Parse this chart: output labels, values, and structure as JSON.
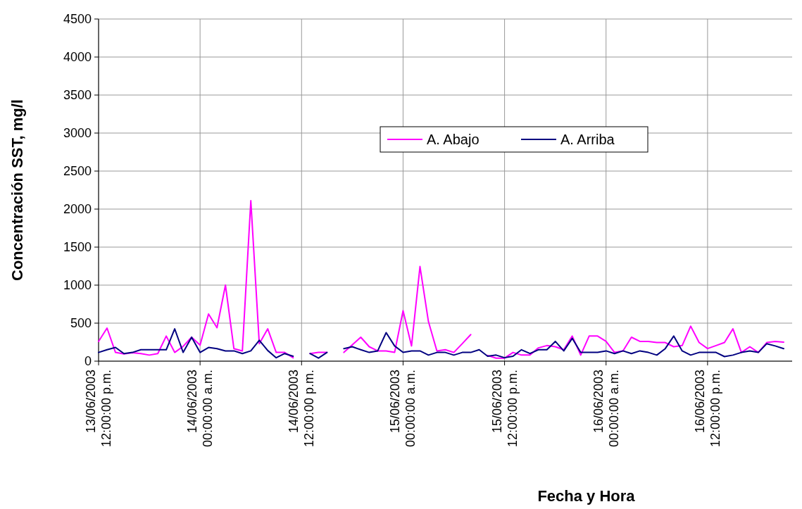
{
  "chart_data": {
    "type": "line",
    "xlabel": "Fecha y Hora",
    "ylabel": "Concentración SST, mg/l",
    "x": [
      "2003-06-13T12:00",
      "2003-06-13T13:00",
      "2003-06-13T14:00",
      "2003-06-13T15:00",
      "2003-06-13T16:00",
      "2003-06-13T17:00",
      "2003-06-13T18:00",
      "2003-06-13T19:00",
      "2003-06-13T20:00",
      "2003-06-13T21:00",
      "2003-06-13T22:00",
      "2003-06-13T23:00",
      "2003-06-14T00:00",
      "2003-06-14T01:00",
      "2003-06-14T02:00",
      "2003-06-14T03:00",
      "2003-06-14T04:00",
      "2003-06-14T05:00",
      "2003-06-14T06:00",
      "2003-06-14T07:00",
      "2003-06-14T08:00",
      "2003-06-14T09:00",
      "2003-06-14T10:00",
      "2003-06-14T11:00",
      "2003-06-14T12:00",
      "2003-06-14T13:00",
      "2003-06-14T14:00",
      "2003-06-14T15:00",
      "2003-06-14T16:00",
      "2003-06-14T17:00",
      "2003-06-14T18:00",
      "2003-06-14T19:00",
      "2003-06-14T20:00",
      "2003-06-14T21:00",
      "2003-06-14T22:00",
      "2003-06-14T23:00",
      "2003-06-15T00:00",
      "2003-06-15T01:00",
      "2003-06-15T02:00",
      "2003-06-15T03:00",
      "2003-06-15T04:00",
      "2003-06-15T05:00",
      "2003-06-15T06:00",
      "2003-06-15T07:00",
      "2003-06-15T08:00",
      "2003-06-15T09:00",
      "2003-06-15T10:00",
      "2003-06-15T11:00",
      "2003-06-15T12:00",
      "2003-06-15T13:00",
      "2003-06-15T14:00",
      "2003-06-15T15:00",
      "2003-06-15T16:00",
      "2003-06-15T17:00",
      "2003-06-15T18:00",
      "2003-06-15T19:00",
      "2003-06-15T20:00",
      "2003-06-15T21:00",
      "2003-06-15T22:00",
      "2003-06-15T23:00",
      "2003-06-16T00:00",
      "2003-06-16T01:00",
      "2003-06-16T02:00",
      "2003-06-16T03:00",
      "2003-06-16T04:00",
      "2003-06-16T05:00",
      "2003-06-16T06:00",
      "2003-06-16T07:00",
      "2003-06-16T08:00",
      "2003-06-16T09:00",
      "2003-06-16T10:00",
      "2003-06-16T11:00",
      "2003-06-16T12:00",
      "2003-06-16T13:00",
      "2003-06-16T14:00",
      "2003-06-16T15:00",
      "2003-06-16T16:00",
      "2003-06-16T17:00",
      "2003-06-16T18:00",
      "2003-06-16T19:00",
      "2003-06-16T20:00",
      "2003-06-16T21:00"
    ],
    "series": [
      {
        "name": "A. Abajo",
        "color": "#ff00ff",
        "values": [
          260,
          435,
          115,
          95,
          110,
          100,
          80,
          100,
          330,
          115,
          195,
          315,
          210,
          620,
          440,
          1000,
          165,
          135,
          2110,
          230,
          425,
          115,
          115,
          45,
          null,
          100,
          115,
          115,
          null,
          115,
          215,
          315,
          190,
          135,
          135,
          115,
          665,
          200,
          1245,
          520,
          135,
          150,
          115,
          230,
          350,
          null,
          75,
          40,
          40,
          115,
          80,
          80,
          175,
          205,
          190,
          150,
          330,
          80,
          330,
          330,
          260,
          115,
          135,
          315,
          260,
          260,
          245,
          245,
          190,
          205,
          460,
          245,
          165,
          205,
          245,
          425,
          115,
          190,
          115,
          245,
          260,
          250
        ]
      },
      {
        "name": "A. Arriba",
        "color": "#000080",
        "values": [
          115,
          150,
          180,
          100,
          115,
          150,
          150,
          150,
          150,
          425,
          115,
          315,
          115,
          180,
          165,
          135,
          135,
          100,
          135,
          275,
          140,
          45,
          100,
          65,
          null,
          100,
          40,
          115,
          null,
          165,
          190,
          150,
          115,
          135,
          375,
          200,
          115,
          135,
          135,
          80,
          115,
          115,
          80,
          115,
          115,
          150,
          65,
          80,
          45,
          65,
          150,
          100,
          150,
          150,
          260,
          135,
          300,
          115,
          115,
          115,
          135,
          100,
          135,
          100,
          135,
          115,
          80,
          165,
          330,
          135,
          80,
          115,
          115,
          115,
          60,
          80,
          115,
          135,
          115,
          230,
          200,
          165
        ]
      }
    ],
    "xlim": [
      "2003-06-13T12:00",
      "2003-06-16T22:00"
    ],
    "xticks": [
      {
        "value": "2003-06-13T12:00",
        "label": "13/06/2003\n12:00:00 p.m."
      },
      {
        "value": "2003-06-14T00:00",
        "label": "14/06/2003\n00:00:00 a.m."
      },
      {
        "value": "2003-06-14T12:00",
        "label": "14/06/2003\n12:00:00 p.m."
      },
      {
        "value": "2003-06-15T00:00",
        "label": "15/06/2003\n00:00:00 a.m."
      },
      {
        "value": "2003-06-15T12:00",
        "label": "15/06/2003\n12:00:00 p.m."
      },
      {
        "value": "2003-06-16T00:00",
        "label": "16/06/2003\n00:00:00 a.m."
      },
      {
        "value": "2003-06-16T12:00",
        "label": "16/06/2003\n12:00:00 p.m."
      }
    ],
    "ylim": [
      0,
      4500
    ],
    "yticks": [
      0,
      500,
      1000,
      1500,
      2000,
      2500,
      3000,
      3500,
      4000,
      4500
    ],
    "grid": true,
    "legend": "top",
    "line_style": "solid",
    "marker": "none"
  }
}
